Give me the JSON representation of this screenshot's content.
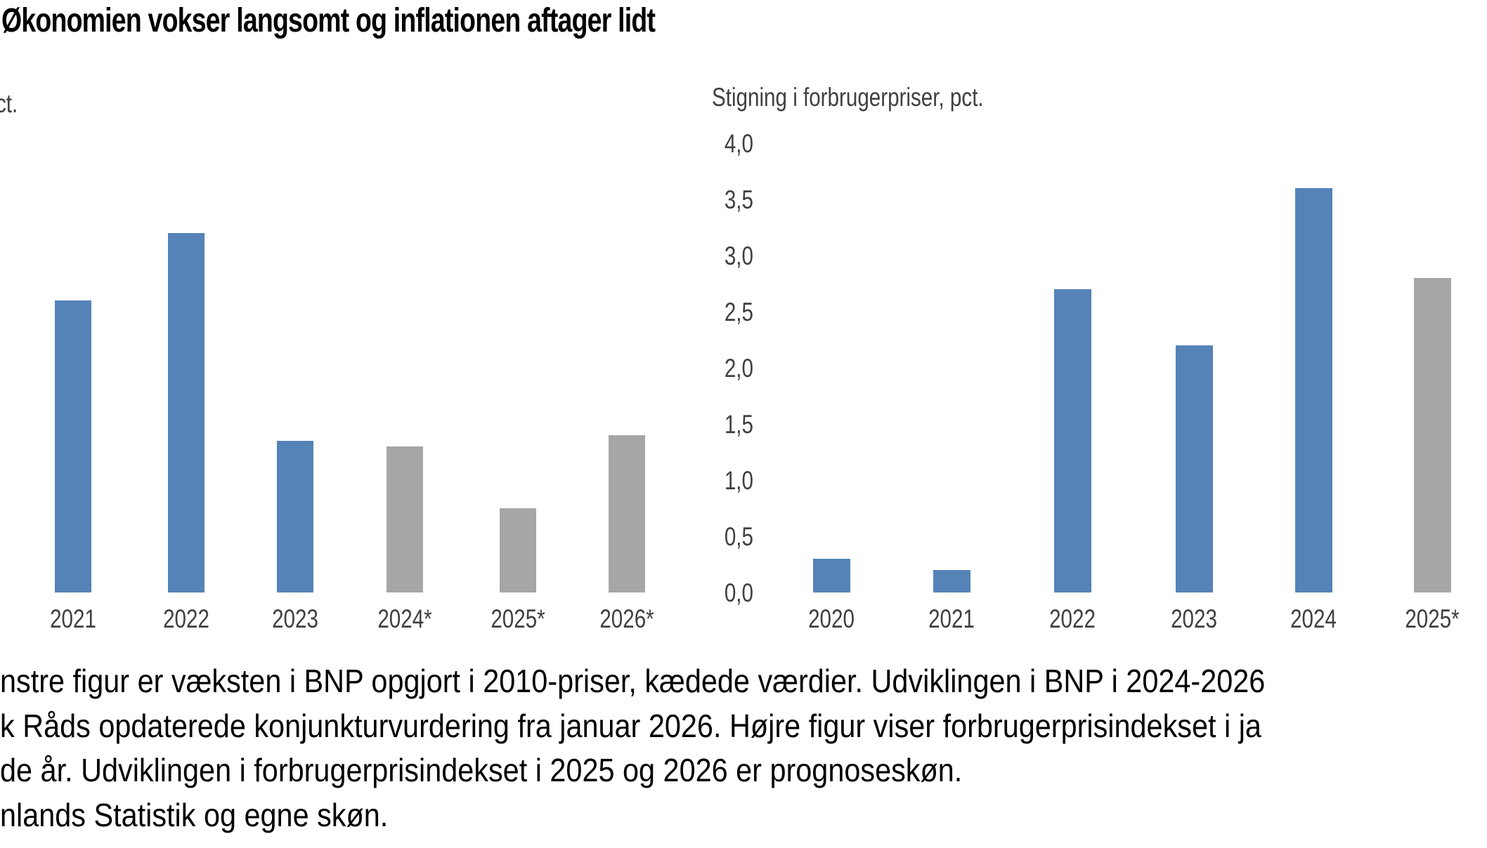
{
  "figure": {
    "title": "Økonomien vokser langsomt og inflationen aftager lidt"
  },
  "chart_data": [
    {
      "type": "bar",
      "title": "ct.",
      "categories": [
        "2021",
        "2022",
        "2023",
        "2024*",
        "2025*",
        "2026*"
      ],
      "values": [
        2.6,
        3.2,
        1.35,
        1.3,
        0.75,
        1.4
      ],
      "bar_colors": [
        "#5583b8",
        "#5583b8",
        "#5583b8",
        "#a6a6a6",
        "#a6a6a6",
        "#a6a6a6"
      ],
      "ylim": [
        0,
        4
      ],
      "grid": false,
      "legend": false,
      "y_axis_labels_visible": false
    },
    {
      "type": "bar",
      "title": "Stigning i forbrugerpriser, pct.",
      "categories": [
        "2020",
        "2021",
        "2022",
        "2023",
        "2024",
        "2025*"
      ],
      "values": [
        0.3,
        0.2,
        2.7,
        2.2,
        3.6,
        2.8
      ],
      "bar_colors": [
        "#5583b8",
        "#5583b8",
        "#5583b8",
        "#5583b8",
        "#5583b8",
        "#a6a6a6"
      ],
      "ylim": [
        0,
        4
      ],
      "yticks": [
        "4,0",
        "3,5",
        "3,0",
        "2,5",
        "2,0",
        "1,5",
        "1,0",
        "0,5",
        "0,0"
      ],
      "grid": false,
      "legend": false
    }
  ],
  "footnote": {
    "lines": [
      "nstre figur er væksten i BNP opgjort i 2010-priser, kædede værdier. Udviklingen i BNP i 2024-2026",
      "k Råds opdaterede konjunkturvurdering fra januar 2026. Højre figur viser forbrugerprisindekset i ja",
      "de år. Udviklingen i forbrugerprisindekset i 2025 og 2026 er prognoseskøn.",
      "nlands Statistik og egne skøn."
    ]
  },
  "colors": {
    "bar_blue": "#5583b8",
    "bar_gray": "#a6a6a6",
    "label_gray": "#404040",
    "title_black": "#000000",
    "background": "#ffffff"
  }
}
